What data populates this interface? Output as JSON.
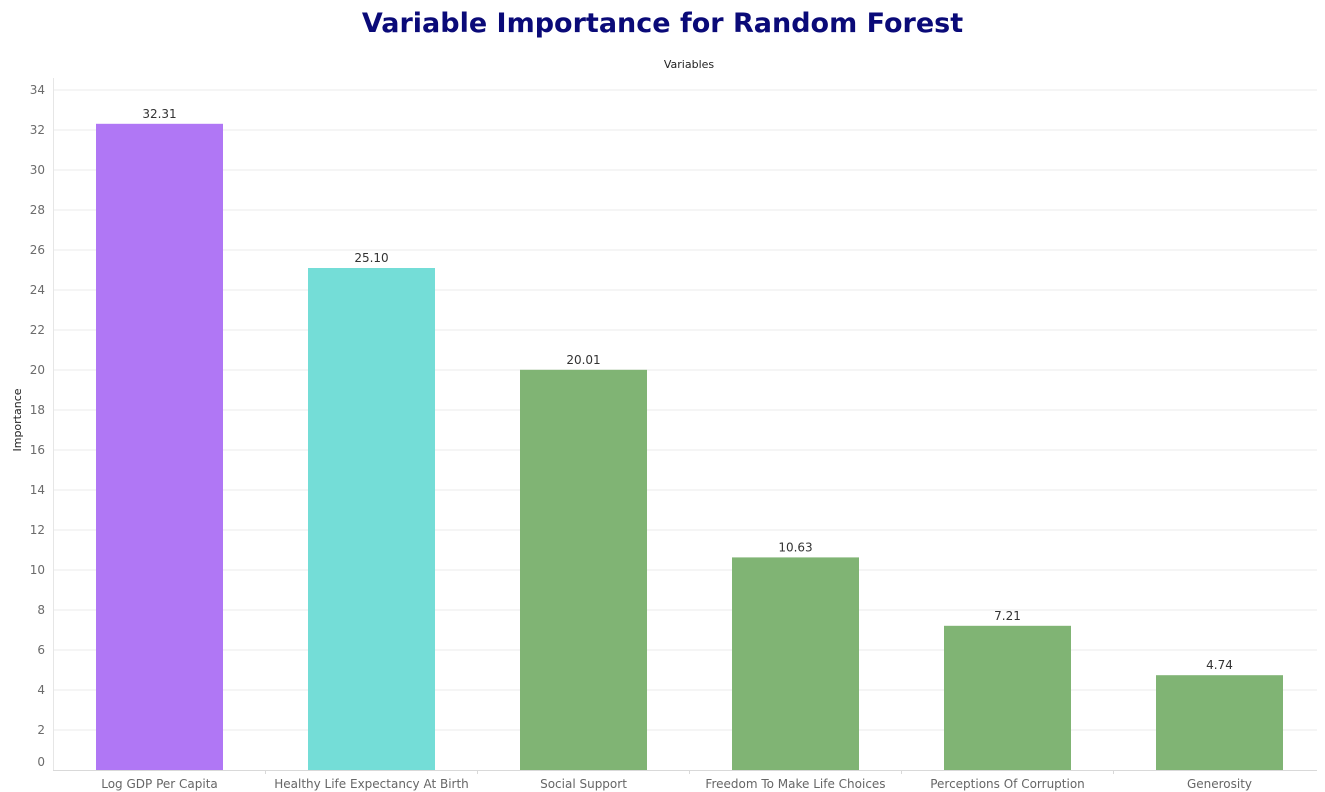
{
  "chart_data": {
    "type": "bar",
    "title": "Variable Importance for Random Forest",
    "xlabel": "Variables",
    "ylabel": "Importance",
    "categories": [
      "Log GDP Per Capita",
      "Healthy Life Expectancy At Birth",
      "Social Support",
      "Freedom To Make Life Choices",
      "Perceptions Of Corruption",
      "Generosity"
    ],
    "values": [
      32.31,
      25.1,
      20.01,
      10.63,
      7.21,
      4.74
    ],
    "value_labels": [
      "32.31",
      "25.10",
      "20.01",
      "10.63",
      "7.21",
      "4.74"
    ],
    "colors": [
      "#b077f5",
      "#74ddd7",
      "#80b474",
      "#80b474",
      "#80b474",
      "#80b474"
    ],
    "ylim": [
      0,
      34
    ],
    "yticks": [
      0,
      2,
      4,
      6,
      8,
      10,
      12,
      14,
      16,
      18,
      20,
      22,
      24,
      26,
      28,
      30,
      32,
      34
    ],
    "grid": true,
    "xlabel_position": "top"
  }
}
